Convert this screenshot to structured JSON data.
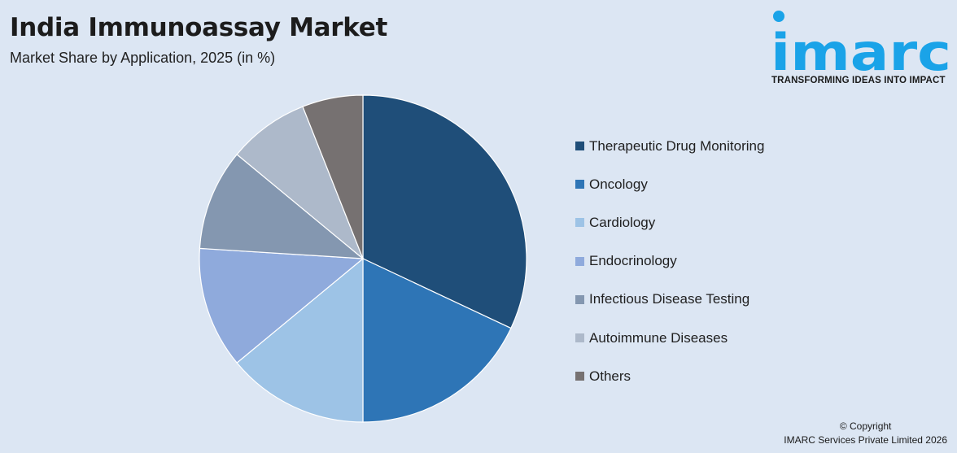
{
  "header": {
    "title": "India Immunoassay Market",
    "subtitle": "Market Share by Application, 2025 (in %)"
  },
  "logo": {
    "wordmark": "imarc",
    "tagline": "TRANSFORMING IDEAS INTO IMPACT",
    "color": "#1aa3e8"
  },
  "footer": {
    "copyright": "© Copyright",
    "company": "IMARC Services Private Limited 2026"
  },
  "chart_data": {
    "type": "pie",
    "start_angle_deg": 0,
    "direction": "clockwise",
    "legend_position": "right",
    "slices": [
      {
        "label": "Therapeutic Drug Monitoring",
        "value": 32,
        "color": "#1f4e79"
      },
      {
        "label": "Oncology",
        "value": 18,
        "color": "#2e75b6"
      },
      {
        "label": "Cardiology",
        "value": 14,
        "color": "#9dc3e6"
      },
      {
        "label": "Endocrinology",
        "value": 12,
        "color": "#8faadc"
      },
      {
        "label": "Infectious Disease Testing",
        "value": 10,
        "color": "#8497b0"
      },
      {
        "label": "Autoimmune Diseases",
        "value": 8,
        "color": "#adb9ca"
      },
      {
        "label": "Others",
        "value": 6,
        "color": "#767171"
      }
    ]
  }
}
